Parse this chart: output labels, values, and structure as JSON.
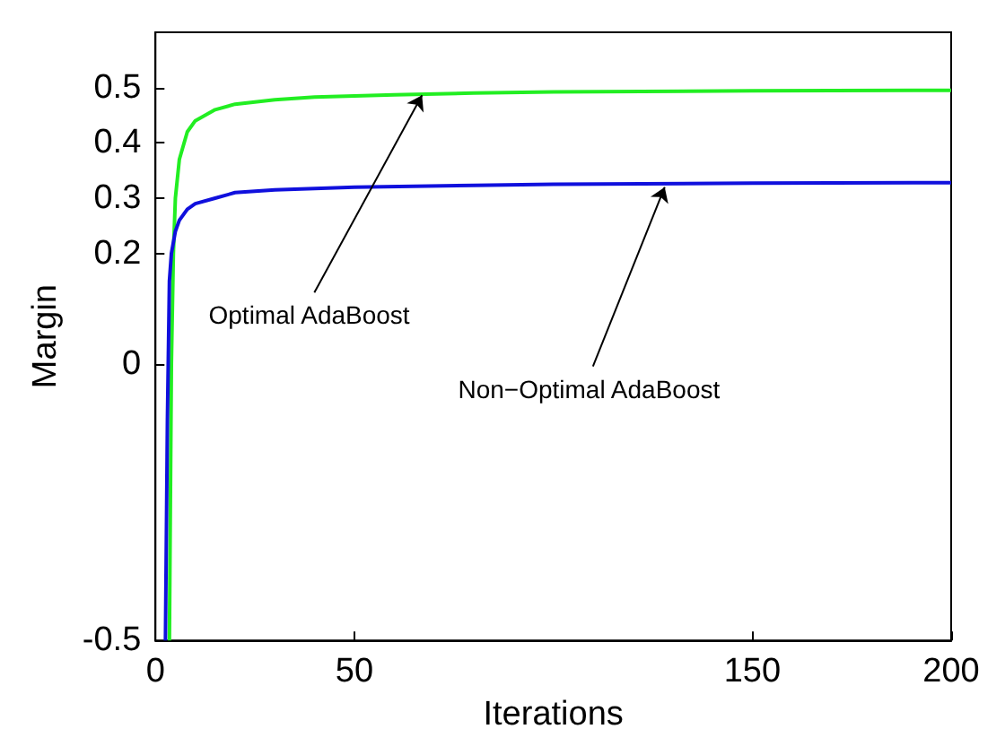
{
  "chart_data": {
    "type": "line",
    "xlabel": "Iterations",
    "ylabel": "Margin",
    "xlim": [
      0,
      200
    ],
    "xticks": [
      0,
      50,
      150,
      200
    ],
    "ylim": [
      -0.5,
      0.6
    ],
    "yticks": [
      -0.5,
      0,
      0.2,
      0.3,
      0.4,
      0.5
    ],
    "grid": false,
    "marker": "none",
    "line_style": "solid",
    "series": [
      {
        "color": "#22ee22",
        "x": [
          3.5,
          4,
          4.5,
          5,
          6,
          8,
          10,
          15,
          20,
          30,
          40,
          60,
          80,
          100,
          150,
          200
        ],
        "values": [
          -0.5,
          0,
          0.2,
          0.3,
          0.37,
          0.42,
          0.44,
          0.46,
          0.47,
          0.478,
          0.483,
          0.487,
          0.49,
          0.492,
          0.494,
          0.495
        ]
      },
      {
        "color": "#1010dd",
        "x": [
          2.5,
          3,
          3.5,
          4,
          5,
          6,
          8,
          10,
          15,
          20,
          30,
          50,
          80,
          100,
          150,
          200
        ],
        "values": [
          -0.5,
          -0.1,
          0.15,
          0.2,
          0.24,
          0.26,
          0.28,
          0.29,
          0.3,
          0.31,
          0.315,
          0.32,
          0.323,
          0.325,
          0.327,
          0.328
        ]
      }
    ],
    "annotations": [
      {
        "text": "Optimal AdaBoost",
        "x": 67,
        "y": 0.486
      },
      {
        "text": "Non−Optimal AdaBoost",
        "x": 128,
        "y": 0.32
      }
    ]
  }
}
